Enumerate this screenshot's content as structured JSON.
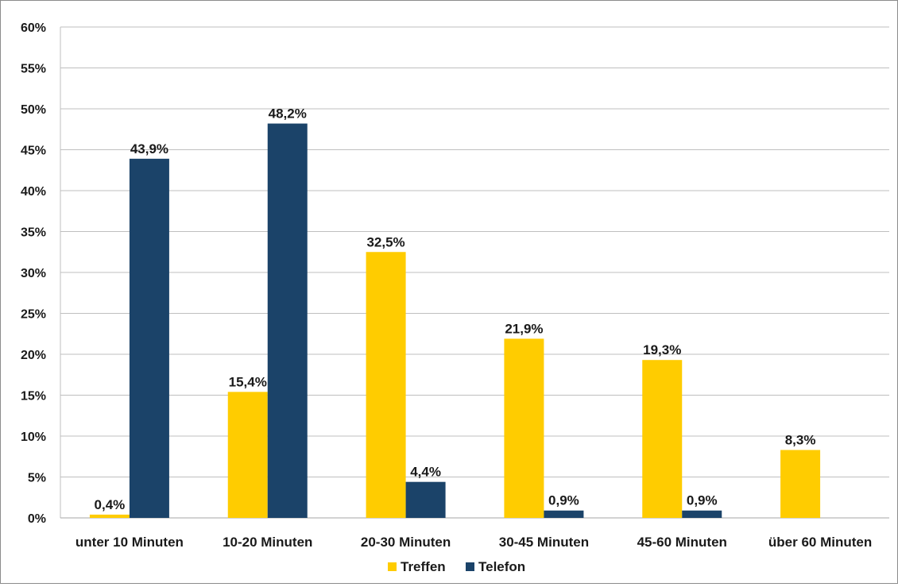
{
  "chart_data": {
    "type": "bar",
    "categories": [
      "unter 10 Minuten",
      "10-20 Minuten",
      "20-30 Minuten",
      "30-45 Minuten",
      "45-60 Minuten",
      "über 60 Minuten"
    ],
    "series": [
      {
        "name": "Treffen",
        "color": "#ffcc00",
        "values": [
          0.4,
          15.4,
          32.5,
          21.9,
          19.3,
          8.3
        ],
        "labels": [
          "0,4%",
          "15,4%",
          "32,5%",
          "21,9%",
          "19,3%",
          "8,3%"
        ]
      },
      {
        "name": "Telefon",
        "color": "#1b4369",
        "values": [
          43.9,
          48.2,
          4.4,
          0.9,
          0.9,
          null
        ],
        "labels": [
          "43,9%",
          "48,2%",
          "4,4%",
          "0,9%",
          "0,9%",
          null
        ]
      }
    ],
    "ylim": [
      0,
      60
    ],
    "yticks": [
      0,
      5,
      10,
      15,
      20,
      25,
      30,
      35,
      40,
      45,
      50,
      55,
      60
    ],
    "ytick_labels": [
      "0%",
      "5%",
      "10%",
      "15%",
      "20%",
      "25%",
      "30%",
      "35%",
      "40%",
      "45%",
      "50%",
      "55%",
      "60%"
    ],
    "grid": true,
    "legend": "bottom"
  }
}
